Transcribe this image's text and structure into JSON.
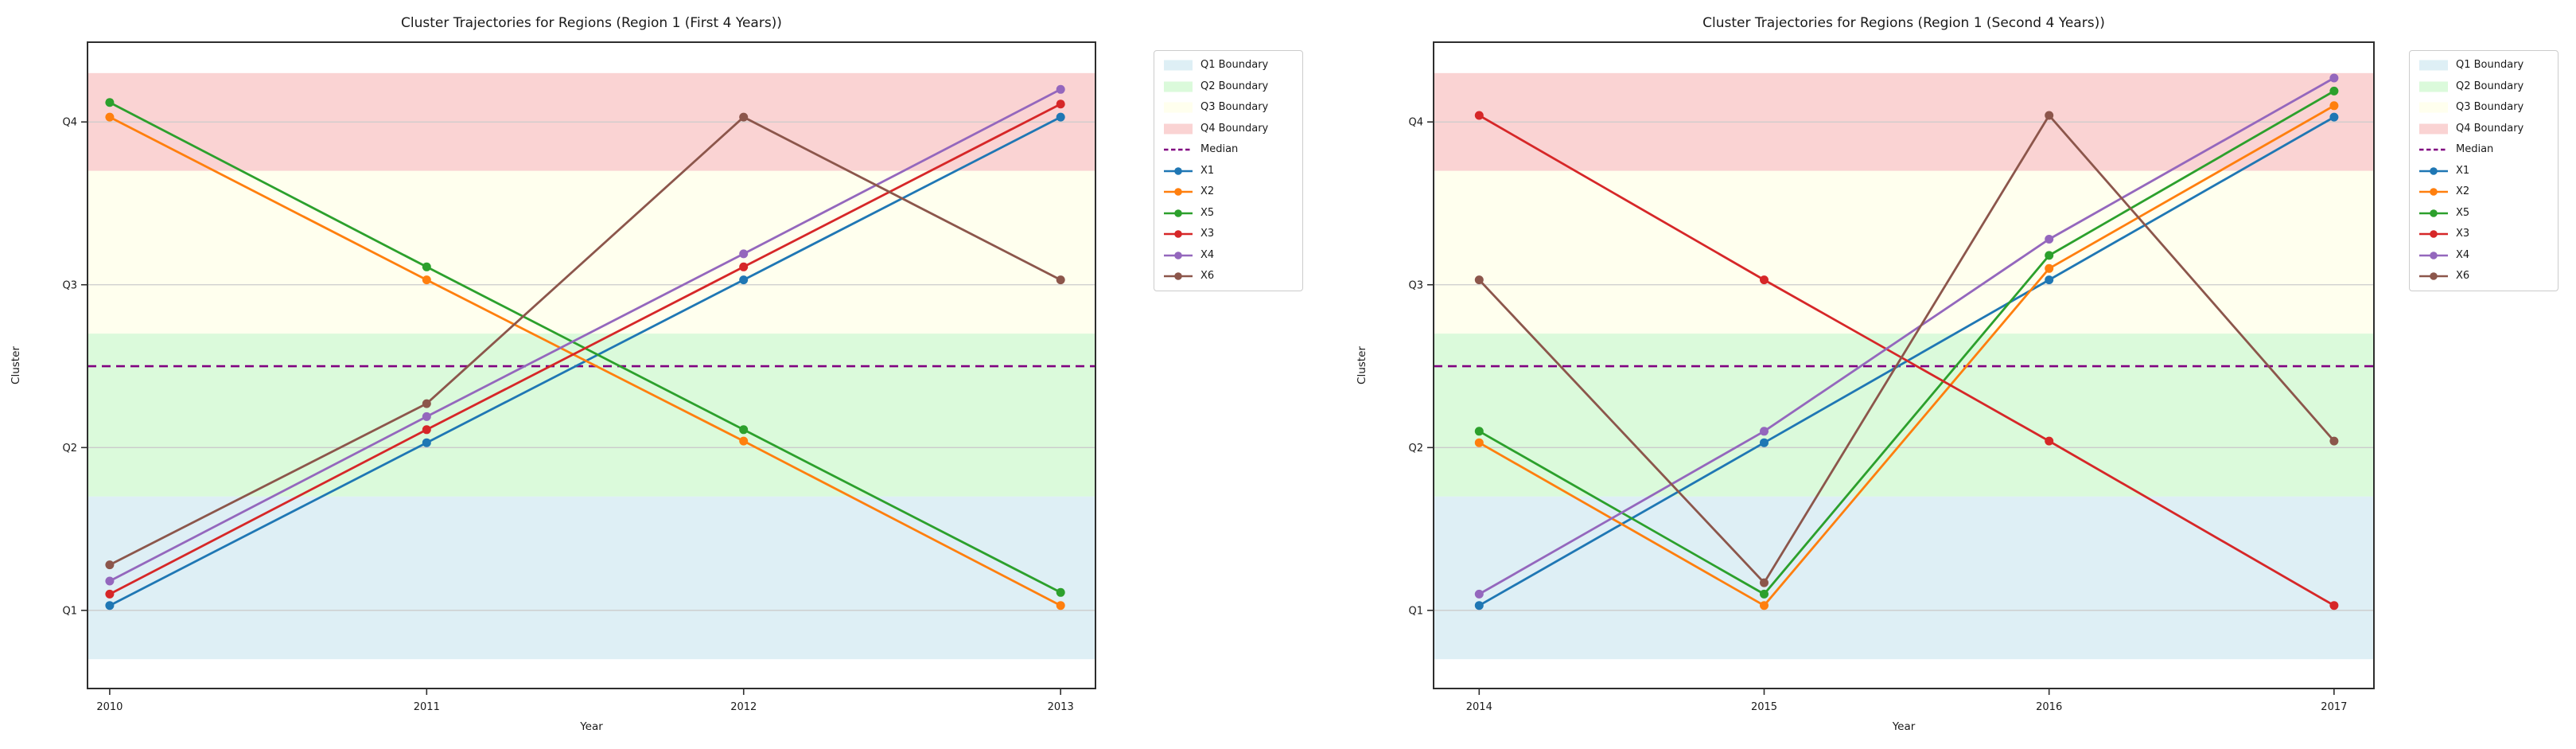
{
  "figure": {
    "background": "#ffffff",
    "text_color": "#1a1a1a",
    "gridline_color": "#cbcbcb",
    "spine_color": "#2e2e2e"
  },
  "legend": {
    "entries": [
      {
        "label": "Q1 Boundary",
        "type": "patch",
        "color": "rgba(173,216,230,0.40)"
      },
      {
        "label": "Q2 Boundary",
        "type": "patch",
        "color": "rgba(144,238,144,0.32)"
      },
      {
        "label": "Q3 Boundary",
        "type": "patch",
        "color": "rgba(255,255,224,0.55)"
      },
      {
        "label": "Q4 Boundary",
        "type": "patch",
        "color": "rgba(240,128,128,0.35)"
      },
      {
        "label": "Median",
        "type": "dashed-line",
        "color": "#800080"
      },
      {
        "label": "X1",
        "type": "line-marker",
        "color": "#1f77b4"
      },
      {
        "label": "X2",
        "type": "line-marker",
        "color": "#ff7f0e"
      },
      {
        "label": "X5",
        "type": "line-marker",
        "color": "#2ca02c"
      },
      {
        "label": "X3",
        "type": "line-marker",
        "color": "#d62728"
      },
      {
        "label": "X4",
        "type": "line-marker",
        "color": "#9467bd"
      },
      {
        "label": "X6",
        "type": "line-marker",
        "color": "#8c564b"
      }
    ]
  },
  "chart_data": [
    {
      "type": "line",
      "title": "Cluster Trajectories for Regions (Region 1 (First 4 Years))",
      "xlabel": "Year",
      "ylabel": "Cluster",
      "x": [
        2010,
        2011,
        2012,
        2013
      ],
      "xlim": [
        2009.93,
        2013.11
      ],
      "ylim": [
        0.52,
        4.49
      ],
      "ytick_values": [
        1,
        2,
        3,
        4
      ],
      "yticklabels": [
        "Q1",
        "Q2",
        "Q3",
        "Q4"
      ],
      "grid": true,
      "legend_position": "outside-upper-right",
      "median": 2.5,
      "median_color": "#800080",
      "bands": [
        {
          "label": "Q1 Boundary",
          "from": 0.7,
          "to": 1.7,
          "color": "rgba(173,216,230,0.40)"
        },
        {
          "label": "Q2 Boundary",
          "from": 1.7,
          "to": 2.7,
          "color": "rgba(144,238,144,0.32)"
        },
        {
          "label": "Q3 Boundary",
          "from": 2.7,
          "to": 3.7,
          "color": "rgba(255,255,224,0.55)"
        },
        {
          "label": "Q4 Boundary",
          "from": 3.7,
          "to": 4.3,
          "color": "rgba(240,128,128,0.35)"
        }
      ],
      "series": [
        {
          "name": "X1",
          "color": "#1f77b4",
          "values": [
            1.03,
            2.03,
            3.03,
            4.03
          ]
        },
        {
          "name": "X2",
          "color": "#ff7f0e",
          "values": [
            4.03,
            3.03,
            2.04,
            1.03
          ]
        },
        {
          "name": "X5",
          "color": "#2ca02c",
          "values": [
            4.12,
            3.11,
            2.11,
            1.11
          ]
        },
        {
          "name": "X3",
          "color": "#d62728",
          "values": [
            1.1,
            2.11,
            3.11,
            4.11
          ]
        },
        {
          "name": "X4",
          "color": "#9467bd",
          "values": [
            1.18,
            2.19,
            3.19,
            4.2
          ]
        },
        {
          "name": "X6",
          "color": "#8c564b",
          "values": [
            1.28,
            2.27,
            4.03,
            3.03
          ]
        }
      ]
    },
    {
      "type": "line",
      "title": "Cluster Trajectories for Regions (Region 1 (Second 4 Years))",
      "xlabel": "Year",
      "ylabel": "Cluster",
      "x": [
        2014,
        2015,
        2016,
        2017
      ],
      "xlim": [
        2013.84,
        2017.14
      ],
      "ylim": [
        0.52,
        4.49
      ],
      "ytick_values": [
        1,
        2,
        3,
        4
      ],
      "yticklabels": [
        "Q1",
        "Q2",
        "Q3",
        "Q4"
      ],
      "grid": true,
      "legend_position": "outside-upper-right",
      "median": 2.5,
      "median_color": "#800080",
      "bands": [
        {
          "label": "Q1 Boundary",
          "from": 0.7,
          "to": 1.7,
          "color": "rgba(173,216,230,0.40)"
        },
        {
          "label": "Q2 Boundary",
          "from": 1.7,
          "to": 2.7,
          "color": "rgba(144,238,144,0.32)"
        },
        {
          "label": "Q3 Boundary",
          "from": 2.7,
          "to": 3.7,
          "color": "rgba(255,255,224,0.55)"
        },
        {
          "label": "Q4 Boundary",
          "from": 3.7,
          "to": 4.3,
          "color": "rgba(240,128,128,0.35)"
        }
      ],
      "series": [
        {
          "name": "X1",
          "color": "#1f77b4",
          "values": [
            1.03,
            2.03,
            3.03,
            4.03
          ]
        },
        {
          "name": "X2",
          "color": "#ff7f0e",
          "values": [
            2.03,
            1.03,
            3.1,
            4.1
          ]
        },
        {
          "name": "X5",
          "color": "#2ca02c",
          "values": [
            2.1,
            1.1,
            3.18,
            4.19
          ]
        },
        {
          "name": "X3",
          "color": "#d62728",
          "values": [
            4.04,
            3.03,
            2.04,
            1.03
          ]
        },
        {
          "name": "X4",
          "color": "#9467bd",
          "values": [
            1.1,
            2.1,
            3.28,
            4.27
          ]
        },
        {
          "name": "X6",
          "color": "#8c564b",
          "values": [
            3.03,
            1.17,
            4.04,
            2.04
          ]
        }
      ]
    }
  ]
}
